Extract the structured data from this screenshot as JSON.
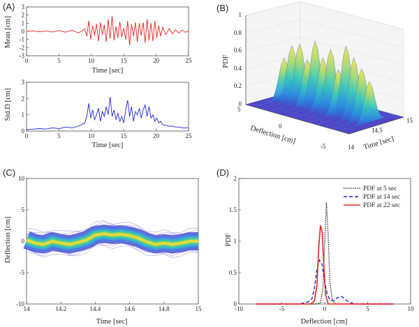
{
  "panels": {
    "A": {
      "label": "(A)",
      "top": {
        "type": "line",
        "ylabel": "Mean [cm]",
        "xlabel": "Time [sec]",
        "xlim": [
          0,
          25
        ],
        "ylim": [
          -3,
          3
        ],
        "xticks": [
          "0",
          "5",
          "10",
          "15",
          "20",
          "25"
        ],
        "yticks": [
          "-3",
          "-2",
          "-1",
          "0",
          "1",
          "2",
          "3"
        ],
        "color": "#e8231e",
        "series": [
          {
            "x": [
              0,
              1,
              2,
              3,
              4,
              5,
              6,
              7,
              8,
              9,
              9.3,
              9.6,
              9.9,
              10.2,
              10.5,
              10.8,
              11.1,
              11.4,
              11.7,
              12,
              12.3,
              12.6,
              12.9,
              13.2,
              13.5,
              13.8,
              14.1,
              14.4,
              14.7,
              15,
              15.3,
              15.6,
              15.9,
              16.2,
              16.5,
              16.8,
              17.1,
              17.4,
              17.7,
              18,
              18.3,
              18.6,
              18.9,
              19.2,
              19.5,
              19.8,
              20.1,
              20.4,
              20.7,
              21,
              21.5,
              22,
              22.5,
              23,
              23.5,
              24,
              24.5,
              25
            ],
            "y": [
              0,
              0.05,
              -0.05,
              0.05,
              -0.08,
              0.1,
              -0.1,
              0.15,
              -0.2,
              0.3,
              -0.6,
              1.3,
              -1.0,
              0.7,
              -0.5,
              0.9,
              -1.2,
              1.1,
              -0.4,
              0.8,
              -1.3,
              1.5,
              -0.9,
              1.9,
              -1.1,
              0.6,
              -0.8,
              1.2,
              -0.7,
              0.4,
              -1.0,
              1.3,
              -1.7,
              0.9,
              -0.6,
              1.1,
              -1.3,
              1.0,
              -0.5,
              1.1,
              -1.4,
              1.5,
              -1.1,
              1.0,
              -1.2,
              1.3,
              -0.8,
              0.7,
              -0.6,
              0.5,
              -0.4,
              0.35,
              -0.3,
              0.2,
              -0.2,
              0.15,
              -0.1,
              0.05
            ]
          }
        ]
      },
      "bottom": {
        "type": "line",
        "ylabel": "Std.D [cm]",
        "xlabel": "Time [sec]",
        "xlim": [
          0,
          25
        ],
        "ylim": [
          0,
          3
        ],
        "xticks": [
          "0",
          "5",
          "10",
          "15",
          "20",
          "25"
        ],
        "yticks": [
          "0",
          "1",
          "2",
          "3"
        ],
        "color": "#1c22d8",
        "series": [
          {
            "x": [
              0,
              1,
              2,
              3,
              4,
              5,
              6,
              7,
              8,
              8.5,
              9,
              9.3,
              9.6,
              9.9,
              10.2,
              10.5,
              10.8,
              11.1,
              11.4,
              11.7,
              12,
              12.3,
              12.6,
              12.9,
              13.2,
              13.5,
              13.8,
              14.1,
              14.4,
              14.7,
              15,
              15.3,
              15.6,
              15.9,
              16.2,
              16.5,
              16.8,
              17.1,
              17.4,
              17.7,
              18,
              18.3,
              18.6,
              18.9,
              19.2,
              19.5,
              19.8,
              20.1,
              20.4,
              20.7,
              21,
              21.5,
              22,
              22.5,
              23,
              23.5,
              24,
              24.5,
              25
            ],
            "y": [
              0.1,
              0.12,
              0.15,
              0.12,
              0.2,
              0.15,
              0.25,
              0.2,
              0.3,
              0.4,
              0.5,
              0.9,
              1.7,
              0.8,
              1.3,
              0.7,
              1.0,
              1.4,
              0.6,
              1.2,
              0.9,
              1.5,
              1.0,
              2.1,
              0.9,
              1.3,
              0.7,
              1.1,
              0.6,
              0.9,
              0.5,
              1.3,
              1.9,
              0.9,
              1.5,
              0.6,
              1.2,
              1.0,
              1.4,
              0.8,
              1.3,
              1.6,
              0.9,
              1.5,
              0.8,
              1.0,
              0.6,
              0.8,
              0.5,
              0.6,
              0.4,
              0.35,
              0.3,
              0.3,
              0.25,
              0.25,
              0.2,
              0.2,
              0.2
            ]
          }
        ]
      }
    },
    "B": {
      "label": "(B)",
      "type": "surface3d",
      "zlabel": "PDF",
      "xlabel": "Deflection [cm]",
      "ylabel": "Time [sec]",
      "zticks": [
        "0",
        "0.2",
        "0.4",
        "0.6",
        "0.8",
        "1"
      ],
      "xticks": [
        "5",
        "0",
        "-5"
      ],
      "yticks": [
        "14",
        "14.5",
        "15"
      ],
      "surface_color_low": "#4a3fc8",
      "surface_color_high": "#f2e24a"
    },
    "C": {
      "label": "(C)",
      "type": "line",
      "ylabel": "Deflection [cm]",
      "xlabel": "Time [sec]",
      "xlim": [
        14,
        15
      ],
      "ylim": [
        -10,
        10
      ],
      "xticks": [
        "14",
        "14.2",
        "14.4",
        "14.6",
        "14.8",
        "15"
      ],
      "yticks": [
        "-10",
        "-5",
        "0",
        "5",
        "10"
      ],
      "series": [
        {
          "x": [
            14,
            14.05,
            14.1,
            14.15,
            14.2,
            14.25,
            14.3,
            14.35,
            14.4,
            14.45,
            14.5,
            14.55,
            14.6,
            14.65,
            14.7,
            14.75,
            14.8,
            14.85,
            14.9,
            14.95,
            15
          ],
          "y": [
            0.2,
            -0.3,
            -0.5,
            0.0,
            -0.3,
            -0.5,
            -0.2,
            0.2,
            1.0,
            1.2,
            1.0,
            1.1,
            0.9,
            0.5,
            -0.1,
            -0.5,
            -0.3,
            -0.5,
            -0.3,
            0.0,
            0.0
          ]
        }
      ]
    },
    "D": {
      "label": "(D)",
      "type": "line",
      "ylabel": "PDF",
      "xlabel": "Deflection [cm]",
      "xlim": [
        -10,
        10
      ],
      "ylim": [
        0,
        2
      ],
      "xticks": [
        "-10",
        "-5",
        "0",
        "5",
        "10"
      ],
      "yticks": [
        "0",
        "0.5",
        "1",
        "1.5",
        "2"
      ],
      "legend_position": "top-right",
      "series": [
        {
          "name": "PDF at 5 sec",
          "style": "dotted",
          "color": "#111111",
          "x": [
            -8,
            -1.0,
            -0.5,
            -0.2,
            0,
            0.2,
            0.4,
            0.6,
            0.9,
            1.3,
            8
          ],
          "y": [
            0,
            0,
            0.02,
            0.25,
            1.0,
            1.62,
            1.1,
            0.35,
            0.05,
            0,
            0
          ]
        },
        {
          "name": "PDF at 14 sec",
          "style": "dashed",
          "color": "#1c22d8",
          "x": [
            -8,
            -3,
            -2,
            -1.5,
            -1.2,
            -0.9,
            -0.6,
            -0.3,
            0,
            0.3,
            0.6,
            1.0,
            1.5,
            2.0,
            2.5,
            3.0,
            3.5,
            8
          ],
          "y": [
            0,
            0,
            0.03,
            0.08,
            0.25,
            0.55,
            0.7,
            0.62,
            0.35,
            0.15,
            0.07,
            0.05,
            0.1,
            0.12,
            0.06,
            0.02,
            0,
            0
          ]
        },
        {
          "name": "PDF at 22 sec",
          "style": "solid",
          "color": "#e8231e",
          "x": [
            -8,
            -1.6,
            -1.2,
            -0.9,
            -0.7,
            -0.5,
            -0.3,
            -0.1,
            0.1,
            0.4,
            8
          ],
          "y": [
            0,
            0,
            0.05,
            0.3,
            0.9,
            1.25,
            1.15,
            0.6,
            0.15,
            0,
            0
          ]
        }
      ]
    }
  }
}
